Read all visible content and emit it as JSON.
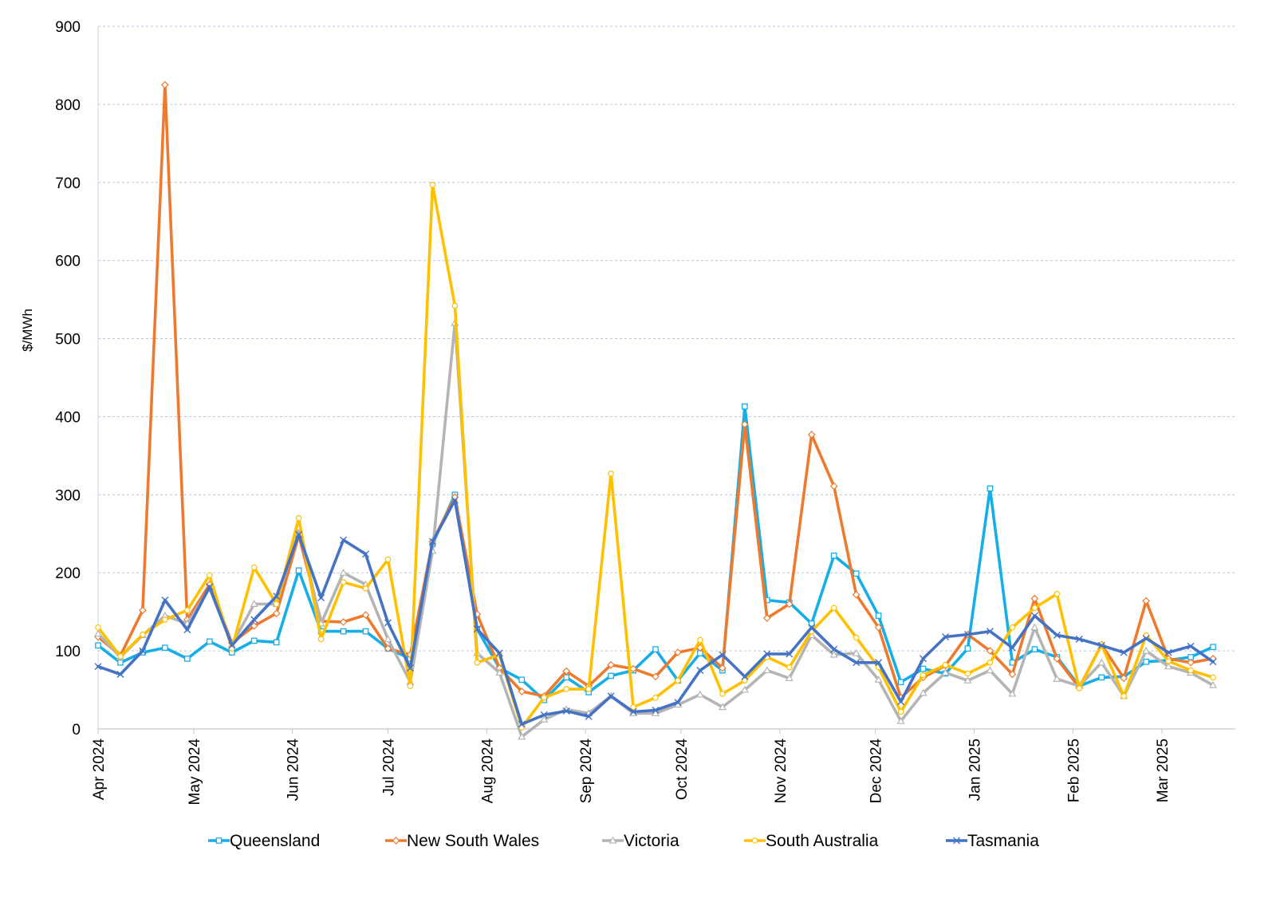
{
  "chart_data": {
    "type": "line",
    "ylabel": "$/MWh",
    "xlabel": "",
    "ylim": [
      0,
      900
    ],
    "yticks": [
      0,
      100,
      200,
      300,
      400,
      500,
      600,
      700,
      800,
      900
    ],
    "x_axis_type": "date",
    "x_start": "2024-04-01",
    "x_step_days": 7,
    "x_tick_labels": [
      "Apr 2024",
      "May 2024",
      "Jun 2024",
      "Jul 2024",
      "Aug 2024",
      "Sep 2024",
      "Oct 2024",
      "Nov 2024",
      "Dec 2024",
      "Jan 2025",
      "Feb 2025",
      "Mar 2025"
    ],
    "x_tick_dates": [
      "2024-04-01",
      "2024-05-01",
      "2024-06-01",
      "2024-07-01",
      "2024-08-01",
      "2024-09-01",
      "2024-10-01",
      "2024-11-01",
      "2024-12-01",
      "2025-01-01",
      "2025-02-01",
      "2025-03-01"
    ],
    "grid": "horizontal dashed",
    "legend_position": "bottom",
    "series": [
      {
        "name": "Queensland",
        "color": "#15AEE8",
        "marker": "square",
        "values": [
          107,
          85,
          98,
          104,
          90,
          112,
          98,
          113,
          111,
          203,
          125,
          125,
          125,
          103,
          90,
          237,
          300,
          128,
          78,
          63,
          37,
          66,
          47,
          68,
          75,
          102,
          62,
          97,
          75,
          413,
          165,
          162,
          135,
          222,
          199,
          145,
          60,
          77,
          71,
          103,
          308,
          85,
          102,
          92,
          55,
          66,
          67,
          86,
          88,
          92,
          105
        ]
      },
      {
        "name": "New South Wales",
        "color": "#EE7A2D",
        "marker": "diamond",
        "values": [
          118,
          94,
          152,
          825,
          140,
          185,
          110,
          132,
          148,
          248,
          138,
          137,
          146,
          103,
          95,
          240,
          297,
          147,
          78,
          48,
          42,
          74,
          55,
          82,
          77,
          67,
          98,
          104,
          78,
          390,
          142,
          160,
          377,
          311,
          172,
          130,
          40,
          66,
          81,
          121,
          100,
          70,
          167,
          90,
          53,
          108,
          65,
          164,
          90,
          85,
          90
        ]
      },
      {
        "name": "Victoria",
        "color": "#B4B4B4",
        "marker": "triangle",
        "values": [
          122,
          92,
          120,
          145,
          135,
          180,
          108,
          160,
          160,
          258,
          135,
          200,
          185,
          115,
          60,
          228,
          520,
          97,
          72,
          -10,
          12,
          25,
          20,
          42,
          20,
          20,
          31,
          44,
          28,
          50,
          75,
          65,
          120,
          95,
          97,
          63,
          10,
          46,
          72,
          62,
          75,
          45,
          130,
          64,
          55,
          85,
          42,
          100,
          80,
          72,
          56
        ]
      },
      {
        "name": "South Australia",
        "color": "#FFC000",
        "marker": "circle",
        "values": [
          130,
          93,
          121,
          140,
          152,
          197,
          103,
          207,
          160,
          270,
          115,
          188,
          180,
          217,
          55,
          697,
          542,
          85,
          95,
          2,
          40,
          51,
          51,
          327,
          28,
          40,
          62,
          114,
          45,
          62,
          92,
          79,
          125,
          155,
          117,
          79,
          22,
          69,
          82,
          71,
          85,
          130,
          155,
          173,
          52,
          108,
          42,
          120,
          87,
          75,
          66
        ]
      },
      {
        "name": "Tasmania",
        "color": "#4472C4",
        "marker": "x",
        "values": [
          80,
          70,
          100,
          165,
          127,
          182,
          107,
          140,
          170,
          249,
          168,
          242,
          224,
          136,
          78,
          240,
          293,
          128,
          97,
          6,
          18,
          23,
          16,
          42,
          22,
          24,
          34,
          75,
          95,
          67,
          96,
          96,
          130,
          102,
          85,
          85,
          35,
          90,
          118,
          121,
          125,
          104,
          145,
          120,
          115,
          107,
          98,
          116,
          98,
          106,
          86
        ]
      }
    ]
  }
}
